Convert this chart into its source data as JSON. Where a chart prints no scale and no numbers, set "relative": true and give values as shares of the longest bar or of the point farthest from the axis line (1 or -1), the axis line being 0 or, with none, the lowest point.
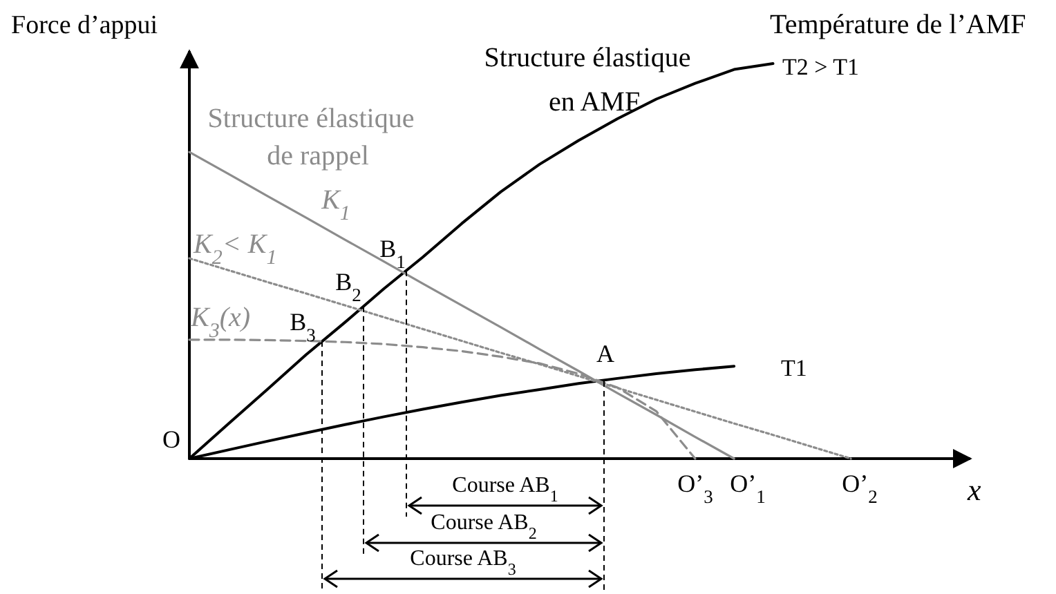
{
  "chart_data": {
    "type": "line",
    "relative": true,
    "ylabel": "Force d’appui",
    "xlabel": "x",
    "categories": [
      null,
      null,
      null,
      null,
      null,
      null,
      null,
      null,
      null,
      null,
      null,
      null,
      null,
      null,
      null,
      null,
      null,
      null,
      null,
      null,
      null
    ],
    "series": [
      {
        "name": "T2 > T1",
        "color": "#000000",
        "line_style": "solid",
        "values": [
          0,
          0.088,
          0.175,
          0.263,
          0.345,
          0.43,
          0.51,
          0.595,
          0.675,
          0.745,
          0.805,
          0.86,
          0.91,
          0.95,
          0.985,
          1,
          null,
          null,
          null,
          null,
          null
        ]
      },
      {
        "name": "T1",
        "color": "#000000",
        "line_style": "solid",
        "values": [
          0,
          0.022,
          0.044,
          0.065,
          0.086,
          0.106,
          0.125,
          0.143,
          0.16,
          0.175,
          0.19,
          0.203,
          0.215,
          0.225,
          0.234,
          null,
          null,
          null,
          null,
          null,
          null
        ]
      },
      {
        "name": "K$_{1}$",
        "color": "#8c8c8c",
        "line_style": "solid",
        "values": [
          0.776,
          0.721,
          0.665,
          0.61,
          0.554,
          0.499,
          0.443,
          0.388,
          0.333,
          0.277,
          0.222,
          0.166,
          0.111,
          0.055,
          0,
          null,
          null,
          null,
          null,
          null,
          null
        ]
      },
      {
        "name": "K$_{2}$< K$_{1}$",
        "color": "#8c8c8c",
        "line_style": "dotted",
        "values": [
          0.507,
          0.477,
          0.447,
          0.418,
          0.388,
          0.358,
          0.328,
          0.298,
          0.268,
          0.239,
          0.209,
          0.179,
          0.149,
          0.119,
          0.089,
          0.06,
          0.03,
          0,
          null,
          null,
          null
        ]
      },
      {
        "name": "K$_{3}$(x)",
        "color": "#8c8c8c",
        "line_style": "dashed",
        "values": [
          0.301,
          0.301,
          0.3,
          0.298,
          0.295,
          0.29,
          0.282,
          0.272,
          0.258,
          0.241,
          0.215,
          0.18,
          0.12,
          0,
          null,
          null,
          null,
          null,
          null,
          null,
          null
        ]
      }
    ],
    "annotations": [
      "O",
      {
        "text": "A",
        "y": 0.196
      },
      {
        "text": "B$_{1}$",
        "y": 0.476
      },
      {
        "text": "B$_{2}$",
        "y": 0.385
      },
      {
        "text": "B$_{3}$",
        "y": 0.297
      },
      {
        "text": "O’$_{3}$",
        "y": 0
      },
      "O’$_{1}$",
      "O’$_{2}$",
      "Structure élastique en AMF",
      "Température de l’AMF",
      "Structure élastique de rappel",
      "Course AB$_{1}$",
      "Course AB$_{2}$",
      "Course AB$_{3}$"
    ]
  }
}
